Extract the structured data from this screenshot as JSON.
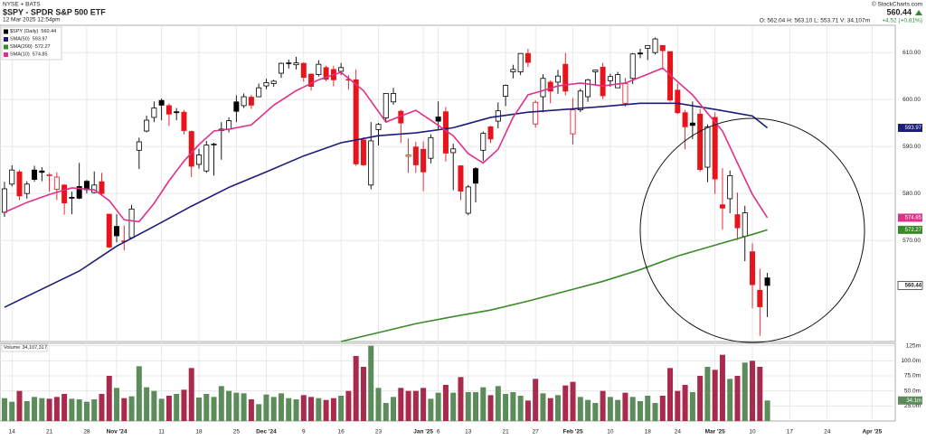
{
  "header": {
    "exchange": "NYSE + BATS",
    "title": "$SPY - SPDR S&P 500 ETF",
    "timestamp": "12 Mar 2025 12:54pm",
    "credit": "© StockCharts.com",
    "quote": "O: 562.04  H: 563.10  L: 553.71  V: 34.107m",
    "change": "+4.52 (+0.81%)"
  },
  "chart_data": {
    "type": "candlestick",
    "price_label": "$SPY (Daily)",
    "last": 560.44,
    "up_color": "#000000",
    "down_color": "#e8141c",
    "xlim": [
      -0.6,
      119.1
    ],
    "ylim": [
      548.5,
      615.8
    ],
    "xticks": [
      {
        "value": 1,
        "label": "14"
      },
      {
        "value": 6,
        "label": "21"
      },
      {
        "value": 11,
        "label": "28"
      },
      {
        "value": 15,
        "label": "Nov '24"
      },
      {
        "value": 21,
        "label": "11"
      },
      {
        "value": 26,
        "label": "18"
      },
      {
        "value": 31,
        "label": "25"
      },
      {
        "value": 35,
        "label": "Dec '24"
      },
      {
        "value": 40,
        "label": "9"
      },
      {
        "value": 45,
        "label": "16"
      },
      {
        "value": 50,
        "label": "23"
      },
      {
        "value": 56,
        "label": "Jan '25"
      },
      {
        "value": 58,
        "label": "6"
      },
      {
        "value": 62,
        "label": "13"
      },
      {
        "value": 67,
        "label": "21"
      },
      {
        "value": 71,
        "label": "27"
      },
      {
        "value": 76,
        "label": "Feb '25"
      },
      {
        "value": 81,
        "label": "10"
      },
      {
        "value": 86,
        "label": "18"
      },
      {
        "value": 90,
        "label": "24"
      },
      {
        "value": 95,
        "label": "Mar '25"
      },
      {
        "value": 100,
        "label": "10"
      },
      {
        "value": 105,
        "label": "17"
      },
      {
        "value": 110,
        "label": "24"
      },
      {
        "value": 116,
        "label": "Apr '25"
      }
    ],
    "yticks": [
      {
        "value": 570,
        "label": "570.00"
      },
      {
        "value": 580,
        "label": "580.00"
      },
      {
        "value": 590,
        "label": "590.00"
      },
      {
        "value": 600,
        "label": "600.00"
      },
      {
        "value": 610,
        "label": "610.00"
      }
    ],
    "ohlc": [
      [
        576,
        582.5,
        575,
        581
      ],
      [
        582,
        586,
        581.5,
        585
      ],
      [
        584.6,
        585,
        578.6,
        579.5
      ],
      [
        580,
        582.6,
        578.9,
        582
      ],
      [
        585,
        585.9,
        582.5,
        583
      ],
      [
        584.8,
        585.6,
        582.6,
        584.5
      ],
      [
        583.8,
        584.4,
        580.4,
        584
      ],
      [
        580.9,
        584.5,
        578.6,
        583.5
      ],
      [
        581.8,
        582,
        575.5,
        578
      ],
      [
        579.2,
        580.4,
        575.6,
        579
      ],
      [
        581.5,
        586.5,
        578.8,
        579
      ],
      [
        582.6,
        582.9,
        580,
        580.8
      ],
      [
        580.2,
        584.7,
        580,
        581.8
      ],
      [
        582.5,
        584.4,
        579.5,
        580
      ],
      [
        575.6,
        575.6,
        568.4,
        568.6
      ],
      [
        573,
        575.6,
        569.6,
        571
      ],
      [
        569.9,
        573.2,
        567.9,
        569.8
      ],
      [
        570.6,
        577.6,
        570.3,
        576.7
      ],
      [
        589.2,
        591.9,
        585.2,
        591
      ],
      [
        593.3,
        596.6,
        593,
        595.6
      ],
      [
        596.2,
        599.6,
        595.2,
        598.2
      ],
      [
        599.8,
        600.2,
        595.6,
        598.8
      ],
      [
        598.7,
        599.2,
        594.4,
        596.9
      ],
      [
        597.4,
        598.2,
        595.6,
        597.2
      ],
      [
        597.3,
        597.8,
        592.6,
        593.4
      ],
      [
        593.2,
        593.4,
        583.5,
        585.8
      ],
      [
        586.2,
        589.5,
        585.3,
        588.2
      ],
      [
        584.8,
        591.2,
        584.4,
        590.3
      ],
      [
        590.4,
        590.8,
        583.8,
        590.5
      ],
      [
        593.4,
        595.2,
        587.2,
        593.7
      ],
      [
        593.7,
        596.2,
        593,
        595.5
      ],
      [
        599.5,
        600.9,
        595.2,
        597.5
      ],
      [
        598.7,
        601.3,
        598.2,
        600.6
      ],
      [
        600.5,
        601,
        598,
        598.8
      ],
      [
        600.6,
        603.4,
        600.5,
        602.5
      ],
      [
        602.9,
        604.4,
        602.2,
        603.6
      ],
      [
        603.4,
        604.2,
        602.7,
        603.9
      ],
      [
        605.6,
        607.9,
        604.6,
        607.7
      ],
      [
        607.7,
        608.5,
        606.6,
        607.8
      ],
      [
        607.4,
        609.1,
        606.4,
        607.8
      ],
      [
        607.7,
        607.9,
        603.8,
        604.7
      ],
      [
        605.4,
        605.6,
        601.9,
        602.8
      ],
      [
        605.3,
        608.4,
        604.9,
        607.5
      ],
      [
        606.8,
        607.2,
        603.9,
        604.3
      ],
      [
        606.4,
        607.2,
        602.8,
        604.2
      ],
      [
        606,
        607.8,
        605.2,
        606.8
      ],
      [
        604.2,
        605.2,
        602.1,
        604.3
      ],
      [
        604.2,
        606.4,
        585.9,
        586.3
      ],
      [
        591.4,
        592,
        585.9,
        586.1
      ],
      [
        581.8,
        595.2,
        580.9,
        591.2
      ],
      [
        593.6,
        595,
        590.2,
        594.7
      ],
      [
        596.1,
        601.3,
        595.1,
        601.3
      ],
      [
        599.5,
        602.5,
        598.9,
        601.3
      ],
      [
        597.5,
        597.8,
        590.8,
        595
      ],
      [
        587.9,
        591.7,
        584.4,
        588.2
      ],
      [
        589.9,
        591,
        584.4,
        586.1
      ],
      [
        589.4,
        591.1,
        580.5,
        584.6
      ],
      [
        587.5,
        592.6,
        586.4,
        591.9
      ],
      [
        596.3,
        599.6,
        593.6,
        595.4
      ],
      [
        597.4,
        598.4,
        586.8,
        588.6
      ],
      [
        588.7,
        590.6,
        580.7,
        589.5
      ],
      [
        585.9,
        585.9,
        578.6,
        580.5
      ],
      [
        575.8,
        581.8,
        575.4,
        581.4
      ],
      [
        585.3,
        585.6,
        578.1,
        582.2
      ],
      [
        589.2,
        593.2,
        586.9,
        592.8
      ],
      [
        594.2,
        594.4,
        590.7,
        591.6
      ],
      [
        595.4,
        599.4,
        593.9,
        597.6
      ],
      [
        600.7,
        603.2,
        598.6,
        603
      ],
      [
        605.9,
        607.4,
        604.5,
        606.4
      ],
      [
        605.9,
        609.8,
        605.2,
        609.8
      ],
      [
        609.8,
        610.8,
        606.9,
        607.9
      ],
      [
        594.8,
        599.8,
        594,
        599.4
      ],
      [
        600.6,
        605.4,
        597.3,
        604.5
      ],
      [
        603.7,
        604.1,
        599.2,
        601.8
      ],
      [
        603.7,
        606.3,
        601.2,
        605
      ],
      [
        607.5,
        609.9,
        600.9,
        601.8
      ],
      [
        592.7,
        600.3,
        590.5,
        597.8
      ],
      [
        597.8,
        602.3,
        597.3,
        601.8
      ],
      [
        600.6,
        604.4,
        599.5,
        604.2
      ],
      [
        605.9,
        606.4,
        603.1,
        606.3
      ],
      [
        606.9,
        607.8,
        600.1,
        600.8
      ],
      [
        604,
        605.5,
        602.7,
        604.9
      ],
      [
        602.5,
        605.9,
        602.5,
        605.3
      ],
      [
        599.2,
        604.6,
        598.5,
        603.4
      ],
      [
        604.5,
        609.9,
        603.3,
        609.7
      ],
      [
        609.9,
        610.8,
        608.8,
        609.7
      ],
      [
        610.9,
        611.5,
        608.4,
        611.5
      ],
      [
        610,
        613.2,
        609.6,
        612.9
      ],
      [
        611.5,
        611.5,
        606.4,
        610.4
      ],
      [
        610.2,
        610.3,
        599.5,
        599.9
      ],
      [
        602,
        603.4,
        596.9,
        597.2
      ],
      [
        597.2,
        597.8,
        589.4,
        594.2
      ],
      [
        595,
        599.6,
        591.6,
        594.5
      ],
      [
        596.9,
        598,
        584.6,
        585.1
      ],
      [
        585.6,
        594.7,
        582.4,
        594.2
      ],
      [
        596.2,
        597.3,
        579.9,
        583.1
      ],
      [
        577.6,
        585.4,
        572.3,
        576.9
      ],
      [
        578.9,
        584.9,
        575.8,
        583.8
      ],
      [
        575.5,
        580.2,
        570.1,
        572.7
      ],
      [
        570.9,
        577.4,
        565.6,
        575.9
      ],
      [
        567.6,
        569.4,
        555.6,
        560.6
      ],
      [
        559.4,
        564,
        549.7,
        555.9
      ],
      [
        562.04,
        563.1,
        553.71,
        560.44
      ]
    ],
    "series": [
      {
        "name": "SMA(50)",
        "color": "#1c1c7a",
        "tag": 593.97,
        "x": [
          0,
          10,
          15,
          20,
          25,
          30,
          35,
          40,
          45,
          50,
          55,
          60,
          65,
          70,
          75,
          80,
          85,
          90,
          95,
          100,
          102
        ],
        "values": [
          555.8,
          563.5,
          568.8,
          573,
          577.3,
          581.3,
          584.6,
          588,
          590.8,
          592.3,
          592.9,
          594,
          596.2,
          597.3,
          597.9,
          598.5,
          599.2,
          599.2,
          597.9,
          596.5,
          593.97
        ]
      },
      {
        "name": "SMA(200)",
        "color": "#3a8a2a",
        "tag": 572.27,
        "x": [
          45,
          50,
          55,
          60,
          65,
          70,
          75,
          80,
          85,
          90,
          95,
          100,
          102
        ],
        "values": [
          548.5,
          550.4,
          552.3,
          553.8,
          555.2,
          557.1,
          559.2,
          561.3,
          563.8,
          566.7,
          569,
          571.3,
          572.27
        ]
      },
      {
        "name": "SMA(10)",
        "color": "#e0308a",
        "tag": 574.85,
        "x": [
          0,
          3,
          6,
          9,
          12,
          14,
          16,
          18,
          20,
          22,
          24,
          26,
          28,
          30,
          33,
          36,
          39,
          42,
          45,
          48,
          51,
          53,
          55,
          57,
          60,
          62,
          64,
          66,
          68,
          70,
          72,
          74,
          77,
          80,
          83,
          86,
          88,
          90,
          92,
          94,
          96,
          98,
          100,
          102
        ],
        "values": [
          576,
          578.1,
          579.8,
          581.2,
          580.8,
          578.5,
          574.4,
          574,
          577.9,
          582.7,
          586.9,
          590.4,
          593.3,
          593.7,
          594.6,
          598.8,
          601.9,
          604.2,
          605.8,
          601.9,
          595.2,
          596.5,
          597.7,
          595.6,
          592.3,
          588.5,
          586.5,
          589.4,
          596.2,
          601,
          601.9,
          602.9,
          603.5,
          602.9,
          603.5,
          605.4,
          606.7,
          603.8,
          601,
          597.1,
          593.3,
          586.5,
          579.8,
          574.85
        ]
      }
    ],
    "volume": {
      "name": "Volume",
      "legend_label": "34,107,317",
      "tag_label": "34.1m",
      "up_color": "#5b8c5a",
      "down_color": "#a82a4c",
      "tag_color": "#5b8c5a",
      "ylim": [
        0,
        129
      ],
      "yticks": [
        {
          "value": 25,
          "label": "25.0m"
        },
        {
          "value": 50,
          "label": "50.0m"
        },
        {
          "value": 75,
          "label": "75.0m"
        },
        {
          "value": 100,
          "label": "100.0m"
        },
        {
          "value": 125,
          "label": "125m"
        }
      ],
      "values": [
        38,
        32,
        50,
        33,
        40,
        38,
        37,
        40,
        45,
        37,
        36,
        32,
        36,
        45,
        75,
        55,
        38,
        41,
        91,
        56,
        50,
        37,
        42,
        45,
        52,
        88,
        39,
        45,
        40,
        58,
        50,
        47,
        46,
        36,
        28,
        44,
        40,
        46,
        38,
        36,
        43,
        40,
        38,
        35,
        38,
        42,
        50,
        108,
        90,
        125,
        55,
        30,
        40,
        55,
        50,
        50,
        55,
        37,
        47,
        60,
        47,
        73,
        48,
        48,
        56,
        43,
        58,
        45,
        48,
        42,
        34,
        70,
        46,
        38,
        43,
        59,
        65,
        40,
        35,
        30,
        50,
        40,
        35,
        47,
        40,
        33,
        42,
        30,
        42,
        88,
        50,
        60,
        48,
        75,
        90,
        85,
        110,
        70,
        75,
        97,
        100,
        90,
        34.107317
      ]
    }
  }
}
